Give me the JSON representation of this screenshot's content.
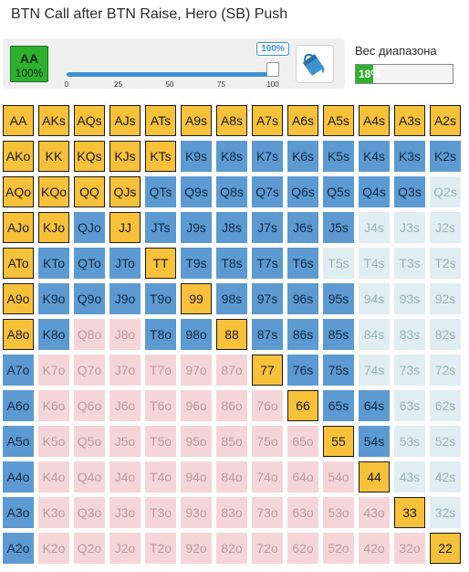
{
  "title": "BTN Call after BTN Raise, Hero (SB) Push",
  "selected_hand": {
    "hand": "AA",
    "percent": "100%"
  },
  "slider": {
    "value_label": "100%",
    "value": 100,
    "ticks": [
      "0",
      "25",
      "50",
      "75",
      "100"
    ]
  },
  "bucket_icon": "paint-bucket-icon",
  "range_weight": {
    "label": "Вес диапазона",
    "value_label": "18%",
    "value": 18
  },
  "colors": {
    "push": "#f8c13a",
    "call": "#5c9ad1",
    "fold_pair": "#e0eef2",
    "fold_offsuit": "#f6d5d9",
    "accent": "#3d93d1",
    "badge_green": "#2fb02f"
  },
  "legend_states": {
    "P": "push",
    "C": "call",
    "F": "fold"
  },
  "rows": [
    {
      "hands": [
        "AA",
        "AKs",
        "AQs",
        "AJs",
        "ATs",
        "A9s",
        "A8s",
        "A7s",
        "A6s",
        "A5s",
        "A4s",
        "A3s",
        "A2s"
      ],
      "states": "PPPPPPPPPPPPP"
    },
    {
      "hands": [
        "AKo",
        "KK",
        "KQs",
        "KJs",
        "KTs",
        "K9s",
        "K8s",
        "K7s",
        "K6s",
        "K5s",
        "K4s",
        "K3s",
        "K2s"
      ],
      "states": "PPPPPCCCCCCCC"
    },
    {
      "hands": [
        "AQo",
        "KQo",
        "QQ",
        "QJs",
        "QTs",
        "Q9s",
        "Q8s",
        "Q7s",
        "Q6s",
        "Q5s",
        "Q4s",
        "Q3s",
        "Q2s"
      ],
      "states": "PPPPCCCCCCCCF"
    },
    {
      "hands": [
        "AJo",
        "KJo",
        "QJo",
        "JJ",
        "JTs",
        "J9s",
        "J8s",
        "J7s",
        "J6s",
        "J5s",
        "J4s",
        "J3s",
        "J2s"
      ],
      "states": "PPCPCCCCCCFFF"
    },
    {
      "hands": [
        "ATo",
        "KTo",
        "QTo",
        "JTo",
        "TT",
        "T9s",
        "T8s",
        "T7s",
        "T6s",
        "T5s",
        "T4s",
        "T3s",
        "T2s"
      ],
      "states": "PCCCPCCCCFFFF"
    },
    {
      "hands": [
        "A9o",
        "K9o",
        "Q9o",
        "J9o",
        "T9o",
        "99",
        "98s",
        "97s",
        "96s",
        "95s",
        "94s",
        "93s",
        "92s"
      ],
      "states": "PCCCCPCCCCFFF"
    },
    {
      "hands": [
        "A8o",
        "K8o",
        "Q8o",
        "J8o",
        "T8o",
        "98o",
        "88",
        "87s",
        "86s",
        "85s",
        "84s",
        "83s",
        "82s"
      ],
      "states": "PCFFCCPCCCFFF"
    },
    {
      "hands": [
        "A7o",
        "K7o",
        "Q7o",
        "J7o",
        "T7o",
        "97o",
        "87o",
        "77",
        "76s",
        "75s",
        "74s",
        "73s",
        "72s"
      ],
      "states": "CFFFFFFPCCFFF"
    },
    {
      "hands": [
        "A6o",
        "K6o",
        "Q6o",
        "J6o",
        "T6o",
        "96o",
        "86o",
        "76o",
        "66",
        "65s",
        "64s",
        "63s",
        "62s"
      ],
      "states": "CFFFFFFFPCCFF"
    },
    {
      "hands": [
        "A5o",
        "K5o",
        "Q5o",
        "J5o",
        "T5o",
        "95o",
        "85o",
        "75o",
        "65o",
        "55",
        "54s",
        "53s",
        "52s"
      ],
      "states": "CFFFFFFFFPCFF"
    },
    {
      "hands": [
        "A4o",
        "K4o",
        "Q4o",
        "J4o",
        "T4o",
        "94o",
        "84o",
        "74o",
        "64o",
        "54o",
        "44",
        "43s",
        "42s"
      ],
      "states": "CFFFFFFFFFPFF"
    },
    {
      "hands": [
        "A3o",
        "K3o",
        "Q3o",
        "J3o",
        "T3o",
        "93o",
        "83o",
        "73o",
        "63o",
        "53o",
        "43o",
        "33",
        "32s"
      ],
      "states": "CFFFFFFFFFFPF"
    },
    {
      "hands": [
        "A2o",
        "K2o",
        "Q2o",
        "J2o",
        "T2o",
        "92o",
        "82o",
        "72o",
        "62o",
        "52o",
        "42o",
        "32o",
        "22"
      ],
      "states": "CFFFFFFFFFFFP"
    }
  ]
}
